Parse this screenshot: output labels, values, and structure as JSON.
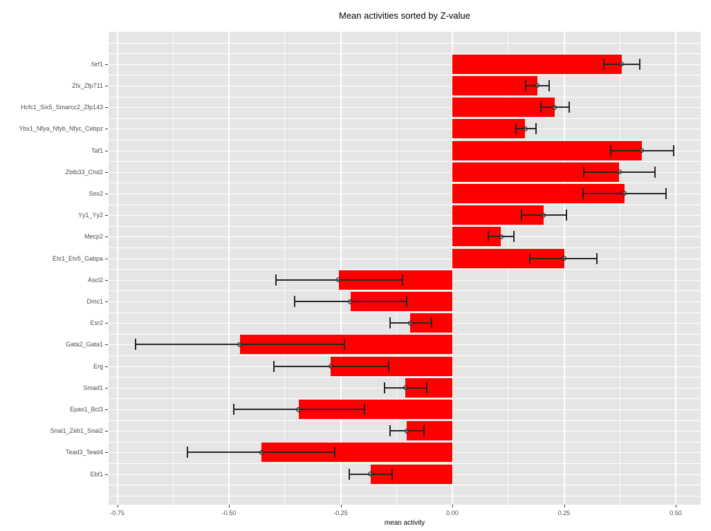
{
  "title": "Mean activities sorted by Z-value",
  "chart_data": {
    "type": "bar",
    "orientation": "horizontal",
    "title": "Mean activities sorted by Z-value",
    "xlabel": "mean activity",
    "ylabel": "",
    "xlim": [
      -0.77,
      0.556
    ],
    "grid": "on",
    "legend_position": "none",
    "x_major_ticks": [
      -0.75,
      -0.5,
      -0.25,
      0,
      0.25,
      0.5
    ],
    "x_tick_labels": [
      "-0.75",
      "-0.50",
      "-0.25",
      "0.00",
      "0.25",
      "0.50"
    ],
    "x_minor_ticks": [
      -0.625,
      -0.375,
      -0.125,
      0.125,
      0.375
    ],
    "categories": [
      "Nrf1",
      "Zfx_Zfp711",
      "Hcfc1_Six5_Smarcc2_Zfp143",
      "Ybx1_Nfya_Nfyb_Nfyc_Cebpz",
      "Taf1",
      "Zbtb33_Chd2",
      "Sox2",
      "Yy1_Yy2",
      "Mecp2",
      "Etv1_Etv5_Gabpa",
      "Ascl2",
      "Dmc1",
      "Esr2",
      "Gata2_Gata1",
      "Erg",
      "Smad1",
      "Epas1_Bcl3",
      "Snai1_Zeb1_Snai2",
      "Tead3_Tead4",
      "Ebf1"
    ],
    "values": [
      0.379,
      0.19,
      0.229,
      0.163,
      0.424,
      0.373,
      0.385,
      0.204,
      0.109,
      0.25,
      -0.254,
      -0.228,
      -0.094,
      -0.476,
      -0.272,
      -0.105,
      -0.344,
      -0.102,
      -0.427,
      -0.183
    ],
    "error_low": [
      0.339,
      0.164,
      0.198,
      0.142,
      0.354,
      0.294,
      0.293,
      0.155,
      0.081,
      0.174,
      -0.395,
      -0.353,
      -0.139,
      -0.709,
      -0.399,
      -0.152,
      -0.489,
      -0.14,
      -0.593,
      -0.231
    ],
    "error_high": [
      0.42,
      0.217,
      0.262,
      0.187,
      0.495,
      0.453,
      0.478,
      0.256,
      0.138,
      0.324,
      -0.111,
      -0.102,
      -0.046,
      -0.242,
      -0.142,
      -0.058,
      -0.197,
      -0.063,
      -0.263,
      -0.135
    ],
    "colors": {
      "bar": "#ff0000",
      "error_bar": "#262626",
      "panel_background": "#e5e5e5",
      "grid": "#ffffff",
      "axis_text": "#4d4d4d",
      "tick_mark": "#333333",
      "title_text": "#000000"
    }
  }
}
